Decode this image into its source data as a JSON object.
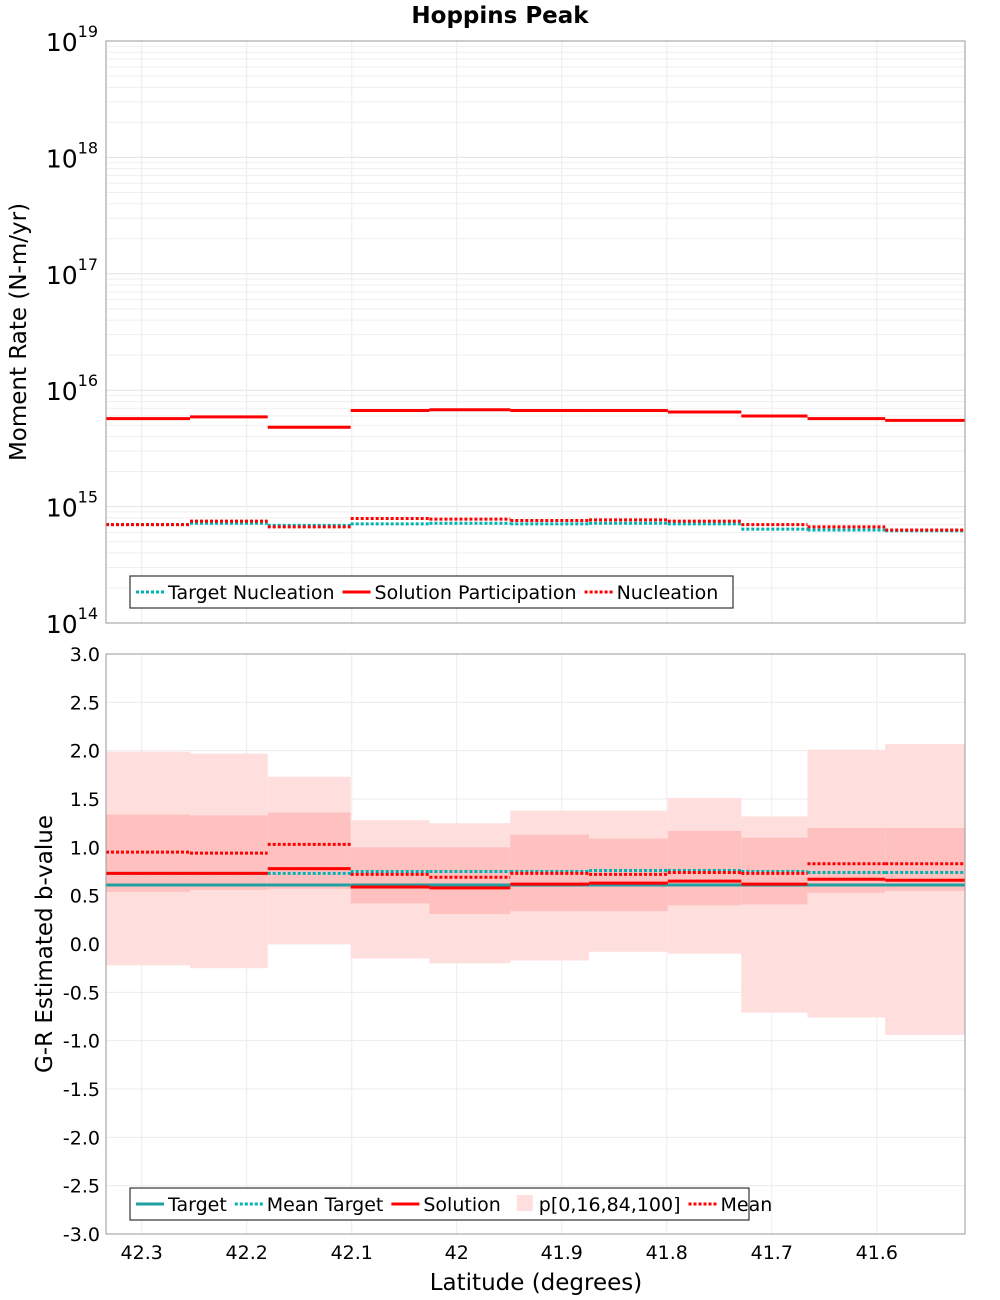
{
  "chart_data": [
    {
      "type": "line",
      "title": "Hoppins Peak",
      "ylabel": "Moment Rate (N-m/yr)",
      "yscale": "log",
      "ylim": [
        100000000000000.0,
        1e+19
      ],
      "xlim": [
        42.334,
        41.516
      ],
      "x_inverted": true,
      "grid": true,
      "legend_position": "bottom-left",
      "ytick_labels": [
        {
          "base": "10",
          "exp": "14",
          "value": 100000000000000.0
        },
        {
          "base": "10",
          "exp": "15",
          "value": 1000000000000000.0
        },
        {
          "base": "10",
          "exp": "16",
          "value": 1e+16
        },
        {
          "base": "10",
          "exp": "17",
          "value": 1e+17
        },
        {
          "base": "10",
          "exp": "18",
          "value": 1e+18
        },
        {
          "base": "10",
          "exp": "19",
          "value": 1e+19
        }
      ],
      "bin_edges": [
        42.334,
        42.254,
        42.18,
        42.101,
        42.026,
        41.949,
        41.874,
        41.799,
        41.729,
        41.666,
        41.592,
        41.516
      ],
      "series": [
        {
          "name": "Target Nucleation",
          "color": "#00b2b2",
          "style": "dotted",
          "values": [
            700000000000000.0,
            720000000000000.0,
            690000000000000.0,
            710000000000000.0,
            720000000000000.0,
            710000000000000.0,
            720000000000000.0,
            710000000000000.0,
            640000000000000.0,
            630000000000000.0,
            620000000000000.0
          ]
        },
        {
          "name": "Solution Participation",
          "color": "#ff0000",
          "style": "solid",
          "values": [
            5700000000000000.0,
            5900000000000000.0,
            4800000000000000.0,
            6700000000000000.0,
            6800000000000000.0,
            6700000000000000.0,
            6700000000000000.0,
            6500000000000000.0,
            6000000000000000.0,
            5700000000000000.0,
            5500000000000000.0
          ]
        },
        {
          "name": "Nucleation",
          "color": "#ff0000",
          "style": "dotted",
          "values": [
            700000000000000.0,
            750000000000000.0,
            670000000000000.0,
            790000000000000.0,
            780000000000000.0,
            760000000000000.0,
            770000000000000.0,
            750000000000000.0,
            700000000000000.0,
            670000000000000.0,
            630000000000000.0
          ]
        }
      ]
    },
    {
      "type": "line",
      "ylabel": "G-R Estimated b-value",
      "xlabel": "Latitude (degrees)",
      "ylim": [
        -3.0,
        3.0
      ],
      "xlim": [
        42.334,
        41.516
      ],
      "x_inverted": true,
      "grid": true,
      "legend_position": "bottom-left",
      "yticks": [
        "-3.0",
        "-2.5",
        "-2.0",
        "-1.5",
        "-1.0",
        "-0.5",
        "0.0",
        "0.5",
        "1.0",
        "1.5",
        "2.0",
        "2.5",
        "3.0"
      ],
      "xticks": [
        "42.3",
        "42.2",
        "42.1",
        "42",
        "41.9",
        "41.8",
        "41.7",
        "41.6"
      ],
      "bin_edges": [
        42.334,
        42.254,
        42.18,
        42.101,
        42.026,
        41.949,
        41.874,
        41.799,
        41.729,
        41.666,
        41.592,
        41.516
      ],
      "series": [
        {
          "name": "Target",
          "color": "#20a0a0",
          "style": "solid",
          "values": [
            0.61,
            0.61,
            0.61,
            0.61,
            0.61,
            0.61,
            0.61,
            0.61,
            0.61,
            0.61,
            0.61
          ]
        },
        {
          "name": "Mean Target",
          "color": "#00b2b2",
          "style": "dotted",
          "values": [
            0.73,
            0.73,
            0.73,
            0.75,
            0.75,
            0.75,
            0.76,
            0.76,
            0.75,
            0.74,
            0.74
          ]
        },
        {
          "name": "Solution",
          "color": "#ff0000",
          "style": "solid",
          "values": [
            0.73,
            0.73,
            0.78,
            0.59,
            0.58,
            0.62,
            0.63,
            0.65,
            0.62,
            0.67,
            0.66
          ]
        },
        {
          "name": "p[0,16,84,100]",
          "color": "#ff9999",
          "style": "band",
          "p0": [
            -0.22,
            -0.25,
            0.0,
            -0.15,
            -0.2,
            -0.17,
            -0.08,
            -0.1,
            -0.71,
            -0.76,
            -0.94
          ],
          "p16": [
            0.54,
            0.56,
            0.57,
            0.42,
            0.31,
            0.34,
            0.34,
            0.4,
            0.41,
            0.53,
            0.55
          ],
          "p84": [
            1.34,
            1.33,
            1.36,
            1.0,
            1.0,
            1.13,
            1.09,
            1.17,
            1.1,
            1.2,
            1.2
          ],
          "p100": [
            1.99,
            1.97,
            1.73,
            1.28,
            1.25,
            1.38,
            1.38,
            1.51,
            1.32,
            2.01,
            2.07
          ]
        },
        {
          "name": "Mean",
          "color": "#ff0000",
          "style": "dotted",
          "values": [
            0.95,
            0.94,
            1.03,
            0.72,
            0.69,
            0.73,
            0.72,
            0.74,
            0.73,
            0.83,
            0.83
          ]
        }
      ]
    }
  ]
}
